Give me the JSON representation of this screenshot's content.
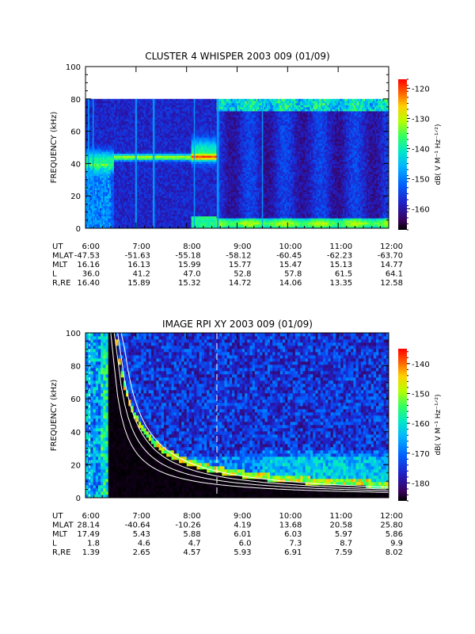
{
  "chart_data": [
    {
      "type": "heatmap",
      "title": "CLUSTER 4 WHISPER 2003 009 (01/09)",
      "ylabel": "FREQUENCY (kHz)",
      "ylim": [
        0,
        100
      ],
      "yticks": [
        "0",
        "20",
        "40",
        "60",
        "80",
        "100"
      ],
      "x_tick_labels": [
        "6:00",
        "7:00",
        "8:00",
        "9:00",
        "10:00",
        "11:00",
        "12:00"
      ],
      "colorbar": {
        "label": "dB( V M⁻¹ Hz⁻¹ᐟ²)",
        "ticks": [
          "-120",
          "-130",
          "-140",
          "-150",
          "-160"
        ],
        "range": [
          -167,
          -117
        ]
      },
      "ephemeris": [
        {
          "label": "UT",
          "values": [
            "6:00",
            "7:00",
            "8:00",
            "9:00",
            "10:00",
            "11:00",
            "12:00"
          ]
        },
        {
          "label": "MLAT",
          "values": [
            "-47.53",
            "-51.63",
            "-55.18",
            "-58.12",
            "-60.45",
            "-62.23",
            "-63.70"
          ]
        },
        {
          "label": "MLT",
          "values": [
            "16.16",
            "16.13",
            "15.99",
            "15.77",
            "15.47",
            "15.13",
            "14.77"
          ]
        },
        {
          "label": "L",
          "values": [
            "36.0",
            "41.2",
            "47.0",
            "52.8",
            "57.8",
            "61.5",
            "64.1"
          ]
        },
        {
          "label": "R,RE",
          "values": [
            "16.40",
            "15.89",
            "15.32",
            "14.72",
            "14.06",
            "13.35",
            "12.58"
          ]
        }
      ]
    },
    {
      "type": "heatmap",
      "title": "IMAGE RPI XY 2003 009 (01/09)",
      "ylabel": "FREQUENCY (kHz)",
      "ylim": [
        0,
        100
      ],
      "yticks": [
        "0",
        "20",
        "40",
        "60",
        "80",
        "100"
      ],
      "x_tick_labels": [
        "6:00",
        "7:00",
        "8:00",
        "9:00",
        "10:00",
        "11:00",
        "12:00"
      ],
      "colorbar": {
        "label": "dB( V M⁻¹ Hz⁻¹ᐟ²)",
        "ticks": [
          "-140",
          "-150",
          "-160",
          "-170",
          "-180"
        ],
        "range": [
          -186,
          -135
        ]
      },
      "ephemeris": [
        {
          "label": "UT",
          "values": [
            "6:00",
            "7:00",
            "8:00",
            "9:00",
            "10:00",
            "11:00",
            "12:00"
          ]
        },
        {
          "label": "MLAT",
          "values": [
            "28.14",
            "-40.64",
            "-10.26",
            "4.19",
            "13.68",
            "20.58",
            "25.80"
          ]
        },
        {
          "label": "MLT",
          "values": [
            "17.49",
            "5.43",
            "5.88",
            "6.01",
            "6.03",
            "5.97",
            "5.86"
          ]
        },
        {
          "label": "L",
          "values": [
            "1.8",
            "4.6",
            "4.7",
            "6.0",
            "7.3",
            "8.7",
            "9.9"
          ]
        },
        {
          "label": "R,RE",
          "values": [
            "1.39",
            "2.65",
            "4.57",
            "5.93",
            "6.91",
            "7.59",
            "8.02"
          ]
        }
      ]
    }
  ]
}
